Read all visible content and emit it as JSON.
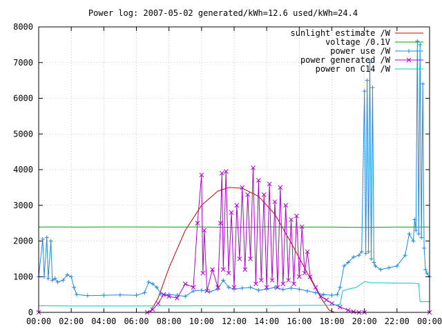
{
  "chart_data": {
    "type": "line",
    "title": "Power log: 2007-05-02 generated/kWh=12.6 used/kWh=24.4",
    "xlabel": "",
    "ylabel": "",
    "xlim": [
      "00:00",
      "24:00"
    ],
    "ylim": [
      0,
      8000
    ],
    "grid": true,
    "legend_position": "top-right",
    "x_ticks": [
      "00:00",
      "02:00",
      "04:00",
      "06:00",
      "08:00",
      "10:00",
      "12:00",
      "14:00",
      "16:00",
      "18:00",
      "20:00",
      "22:00",
      "00:00"
    ],
    "y_ticks": [
      "0",
      "1000",
      "2000",
      "3000",
      "4000",
      "5000",
      "6000",
      "7000",
      "8000"
    ],
    "series": [
      {
        "name": "sunlight estimate /W",
        "color": "#cc0000",
        "marker": "none",
        "x": [
          "00:00",
          "06:50",
          "07:20",
          "08:00",
          "09:00",
          "10:00",
          "11:00",
          "11:40",
          "12:30",
          "13:30",
          "14:30",
          "15:30",
          "16:30",
          "17:20",
          "17:50",
          "18:10",
          "24:00"
        ],
        "y": [
          0,
          0,
          400,
          1250,
          2300,
          3000,
          3400,
          3500,
          3480,
          3250,
          2750,
          1950,
          1100,
          400,
          60,
          0,
          0
        ]
      },
      {
        "name": "voltage /0.1V",
        "color": "#00a000",
        "marker": "none",
        "x": [
          "00:00",
          "01:00",
          "02:00",
          "04:00",
          "06:00",
          "08:00",
          "10:00",
          "12:00",
          "14:00",
          "16:00",
          "18:00",
          "20:00",
          "22:00",
          "24:00"
        ],
        "y": [
          2390,
          2395,
          2390,
          2395,
          2395,
          2390,
          2395,
          2380,
          2395,
          2390,
          2390,
          2380,
          2390,
          2390
        ]
      },
      {
        "name": "power use /W",
        "color": "#1e88e5",
        "marker": "+",
        "x": [
          "00:00",
          "00:15",
          "00:20",
          "00:30",
          "00:35",
          "00:45",
          "00:50",
          "01:00",
          "01:10",
          "01:30",
          "01:45",
          "02:00",
          "02:10",
          "02:20",
          "03:00",
          "04:00",
          "05:00",
          "06:00",
          "06:30",
          "06:45",
          "07:00",
          "07:15",
          "07:30",
          "07:45",
          "08:00",
          "08:30",
          "09:00",
          "09:30",
          "10:00",
          "10:30",
          "11:00",
          "11:20",
          "11:40",
          "12:00",
          "12:30",
          "13:00",
          "13:30",
          "14:00",
          "14:30",
          "15:00",
          "15:30",
          "16:00",
          "16:30",
          "17:00",
          "17:30",
          "18:00",
          "18:20",
          "18:30",
          "18:45",
          "19:00",
          "19:20",
          "19:40",
          "19:50",
          "20:00",
          "20:05",
          "20:10",
          "20:15",
          "20:20",
          "20:25",
          "20:30",
          "20:35",
          "20:40",
          "21:00",
          "21:30",
          "22:00",
          "22:30",
          "22:45",
          "23:00",
          "23:05",
          "23:10",
          "23:15",
          "23:20",
          "23:25",
          "23:30",
          "23:35",
          "23:40",
          "23:45",
          "23:50",
          "24:00"
        ],
        "y": [
          1000,
          2050,
          1000,
          2100,
          950,
          2000,
          900,
          950,
          850,
          900,
          1050,
          1000,
          700,
          500,
          470,
          480,
          490,
          480,
          550,
          850,
          800,
          700,
          520,
          500,
          500,
          480,
          450,
          600,
          620,
          580,
          650,
          900,
          700,
          650,
          680,
          700,
          620,
          650,
          700,
          640,
          680,
          650,
          600,
          550,
          500,
          480,
          500,
          700,
          1300,
          1400,
          1550,
          1600,
          1700,
          6200,
          1650,
          6500,
          1700,
          7000,
          1500,
          6300,
          1400,
          1300,
          1200,
          1250,
          1300,
          1600,
          2200,
          2000,
          2600,
          2300,
          7600,
          2200,
          7500,
          2100,
          6400,
          1800,
          1200,
          1100,
          1000
        ]
      },
      {
        "name": "power generated /W",
        "color": "#b000d0",
        "marker": "x",
        "x": [
          "00:00",
          "06:40",
          "07:00",
          "07:20",
          "07:40",
          "08:00",
          "08:30",
          "09:00",
          "09:30",
          "09:45",
          "10:00",
          "10:05",
          "10:10",
          "10:20",
          "10:40",
          "11:00",
          "11:10",
          "11:15",
          "11:20",
          "11:30",
          "11:40",
          "11:50",
          "12:00",
          "12:10",
          "12:20",
          "12:30",
          "12:40",
          "12:50",
          "13:00",
          "13:10",
          "13:20",
          "13:30",
          "13:40",
          "13:50",
          "14:00",
          "14:10",
          "14:20",
          "14:30",
          "14:40",
          "14:50",
          "15:00",
          "15:10",
          "15:20",
          "15:30",
          "15:40",
          "15:50",
          "16:00",
          "16:10",
          "16:20",
          "16:30",
          "16:40",
          "17:00",
          "17:20",
          "17:40",
          "18:00",
          "18:30",
          "19:00",
          "19:20",
          "19:40",
          "20:00",
          "24:00"
        ],
        "y": [
          0,
          0,
          80,
          250,
          500,
          450,
          400,
          800,
          700,
          2500,
          3850,
          1100,
          2300,
          600,
          1200,
          700,
          2500,
          3900,
          1200,
          3950,
          1100,
          2800,
          700,
          3000,
          1500,
          3500,
          1200,
          3300,
          1500,
          4050,
          800,
          3700,
          900,
          3300,
          700,
          3600,
          900,
          3100,
          700,
          3500,
          800,
          3000,
          900,
          2600,
          800,
          2700,
          1000,
          2400,
          1100,
          1700,
          1000,
          700,
          450,
          350,
          250,
          150,
          60,
          20,
          0,
          0,
          0
        ]
      },
      {
        "name": "power on C14 /W",
        "color": "#00c8c8",
        "marker": "none",
        "x": [
          "00:00",
          "02:00",
          "06:00",
          "10:00",
          "14:00",
          "18:00",
          "18:30",
          "18:40",
          "19:00",
          "19:30",
          "20:00",
          "20:10",
          "20:20",
          "21:00",
          "22:00",
          "23:00",
          "23:20",
          "23:25",
          "24:00"
        ],
        "y": [
          190,
          180,
          180,
          185,
          190,
          200,
          220,
          600,
          650,
          700,
          860,
          850,
          830,
          830,
          820,
          820,
          800,
          300,
          300
        ]
      }
    ]
  }
}
